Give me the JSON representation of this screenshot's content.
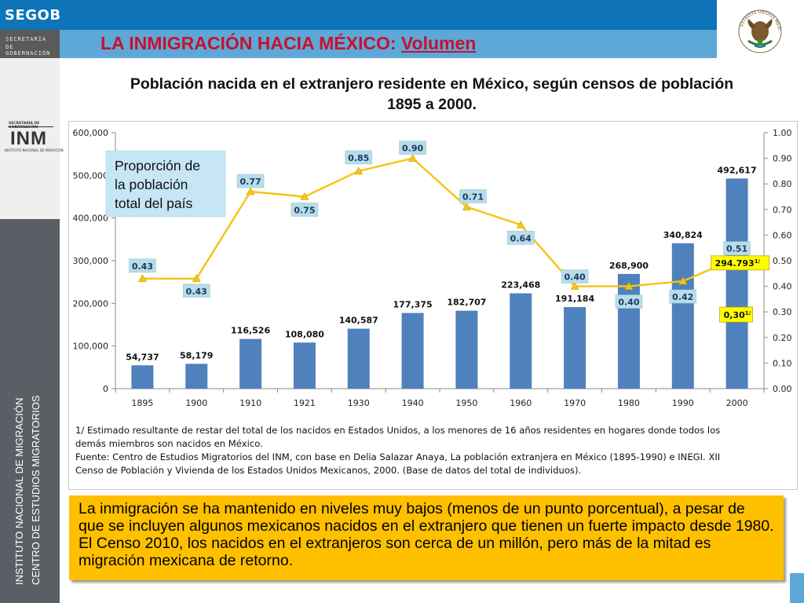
{
  "header": {
    "brand": "SEGOB",
    "secretaria_line1": "SECRETARÍA",
    "secretaria_line2": "DE GOBERNACIÓN",
    "title_main": "LA INMIGRACIÓN HACIA MÉXICO: ",
    "title_underlined": "Volumen",
    "seal_text": "ESTADOS UNIDOS MEXICANOS"
  },
  "sidebar": {
    "logo_header": "SECRETARÍA DE GOBERNACIÓN",
    "logo_text": "INM",
    "logo_caption": "INSTITUTO NACIONAL DE MIGRACIÓN",
    "vertical_1": "INSTITUTO NACIONAL DE MIGRACIÓN",
    "vertical_2": "CENTRO DE ESTUDIOS MIGRATORIOS"
  },
  "chart_title_line1": "Población nacida en el extranjero residente en México, según censos de población",
  "chart_title_line2": "1895 a 2000.",
  "chart_data": {
    "type": "bar",
    "categories": [
      "1895",
      "1900",
      "1910",
      "1921",
      "1930",
      "1940",
      "1950",
      "1960",
      "1970",
      "1980",
      "1990",
      "2000"
    ],
    "series": [
      {
        "type": "bar",
        "values": [
          54737,
          58179,
          116526,
          108080,
          140587,
          177375,
          182707,
          223468,
          191184,
          268900,
          340824,
          492617
        ],
        "labels": [
          "54,737",
          "58,179",
          "116,526",
          "108,080",
          "140,587",
          "177,375",
          "182,707",
          "223,468",
          "191,184",
          "268,900",
          "340,824",
          "492,617"
        ],
        "color": "#4f81bd"
      },
      {
        "type": "line",
        "axis": "right",
        "values": [
          0.43,
          0.43,
          0.77,
          0.75,
          0.85,
          0.9,
          0.71,
          0.64,
          0.4,
          0.4,
          0.42,
          0.51
        ],
        "labels": [
          "0.43",
          "0.43",
          "0.77",
          "0.75",
          "0.85",
          "0.90",
          "0.71",
          "0.64",
          "0.40",
          "0.40",
          "0.42",
          "0.51"
        ],
        "color": "#f5c518"
      }
    ],
    "estimate_point": {
      "category": "2000",
      "bar_value": 294793,
      "bar_label": "294.793",
      "proportion": 0.3,
      "proportion_label": "0,30",
      "footnote_mark": "1/"
    },
    "y_left": {
      "min": 0,
      "max": 600000,
      "ticks": [
        "0",
        "100,000",
        "200,000",
        "300,000",
        "400,000",
        "500,000",
        "600,000"
      ]
    },
    "y_right": {
      "min": 0,
      "max": 1.0,
      "ticks": [
        "0.00",
        "0.10",
        "0.20",
        "0.30",
        "0.40",
        "0.50",
        "0.60",
        "0.70",
        "0.80",
        "0.90",
        "1.00"
      ]
    },
    "annotation": [
      "Proporción de",
      "la población",
      "total del país"
    ],
    "grid": false,
    "legend": "none"
  },
  "notes": {
    "line1": "1/ Estimado resultante de restar del total de los nacidos en Estados Unidos, a los menores de 16 años residentes en hogares donde todos los",
    "line2": "demás miembros son nacidos en México.",
    "line3": "Fuente: Centro de Estudios Migratorios del INM, con base en Delia Salazar Anaya, La población extranjera en México (1895-1990) e INEGI. XII",
    "line4": "Censo de Población y Vivienda de los Estados Unidos Mexicanos, 2000. (Base de datos del total de individuos)."
  },
  "summary": "La inmigración se ha mantenido en niveles muy bajos (menos de un punto porcentual), a pesar de que se incluyen algunos mexicanos nacidos en el extranjero que tienen un fuerte impacto desde 1980. El Censo 2010, los nacidos en el extranjeros son cerca de un millón, pero más de la mitad es migración mexicana de retorno."
}
